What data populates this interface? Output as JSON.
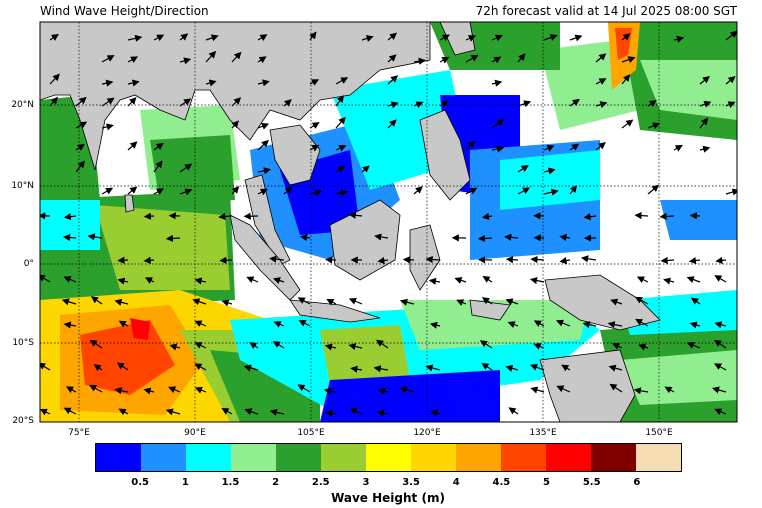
{
  "header": {
    "title_left": "Wind Wave Height/Direction",
    "title_right": "72h forecast valid at 14 Jul 2025 08:00 SGT"
  },
  "map": {
    "lat_labels": [
      "20°N",
      "10°N",
      "0°",
      "10°S",
      "20°S"
    ],
    "lon_labels": [
      "75°E",
      "90°E",
      "105°E",
      "120°E",
      "135°E",
      "150°E"
    ],
    "land_color": "#c8c8c8",
    "calm_color": "#ffffff"
  },
  "colorbar": {
    "title": "Wave Height (m)",
    "ticks": [
      "0.5",
      "1",
      "1.5",
      "2",
      "2.5",
      "3",
      "3.5",
      "4",
      "4.5",
      "5",
      "5.5",
      "6"
    ],
    "colors": [
      "#0000ff",
      "#1e90ff",
      "#00ffff",
      "#90ee90",
      "#2ca02c",
      "#9acd32",
      "#ffff00",
      "#ffd700",
      "#ffa500",
      "#ff4500",
      "#ff0000",
      "#800000",
      "#f5deb3"
    ]
  }
}
